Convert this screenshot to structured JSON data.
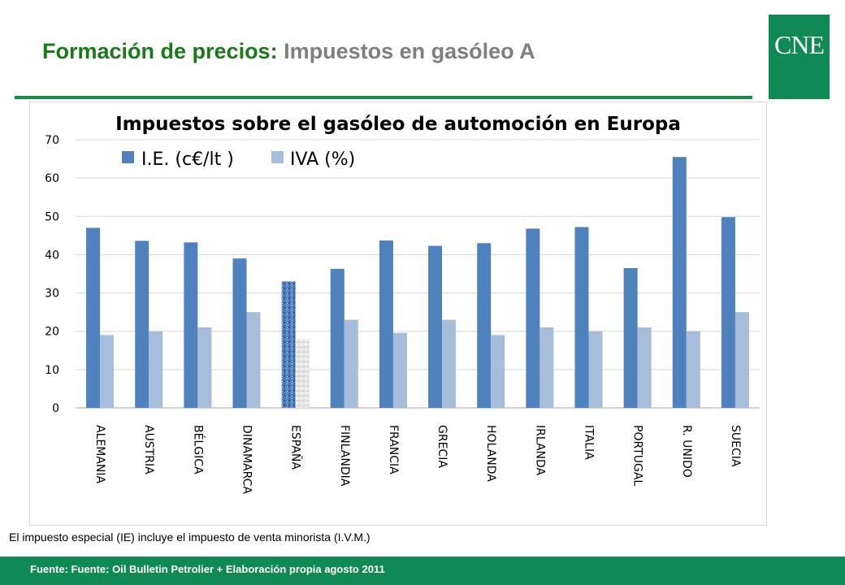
{
  "header": {
    "title_main": "Formación de precios:",
    "title_sub": "Impuestos en gasóleo A",
    "logo_text": "CNE",
    "colors": {
      "title_main": "#1a7a1a",
      "title_sub": "#7f7f7f",
      "brand": "#0f8a55"
    }
  },
  "chart_data": {
    "type": "bar",
    "title": "Impuestos sobre el gasóleo de automoción en Europa",
    "categories": [
      "ALEMANIA",
      "AUSTRIA",
      "BÉLGICA",
      "DINAMARCA",
      "ESPAÑA",
      "FINLANDIA",
      "FRANCIA",
      "GRECIA",
      "HOLANDA",
      "IRLANDA",
      "ITALIA",
      "PORTUGAL",
      "R. UNIDO",
      "SUECIA"
    ],
    "series": [
      {
        "name": "I.E. (c€/lt )",
        "color": "#4f81bd",
        "values": [
          47.0,
          43.6,
          43.2,
          39.0,
          33.0,
          36.3,
          43.7,
          42.3,
          43.0,
          46.8,
          47.2,
          36.5,
          65.5,
          49.8
        ]
      },
      {
        "name": "IVA (%)",
        "color": "#a8bcdc",
        "values": [
          19,
          20,
          21,
          25,
          18,
          23,
          19.6,
          23,
          19,
          21,
          20,
          21,
          20,
          25
        ]
      }
    ],
    "highlight_category": "ESPAÑA",
    "ylim": [
      0,
      70
    ],
    "yticks": [
      0,
      10,
      20,
      30,
      40,
      50,
      60,
      70
    ],
    "legend_position": "top-left",
    "grid": true
  },
  "note": "El impuesto especial (IE) incluye el impuesto de venta minorista (I.V.M.)",
  "footer": {
    "source": "Fuente: Fuente: Oil Bulletin Petrolier + Elaboración propia agosto 2011"
  }
}
